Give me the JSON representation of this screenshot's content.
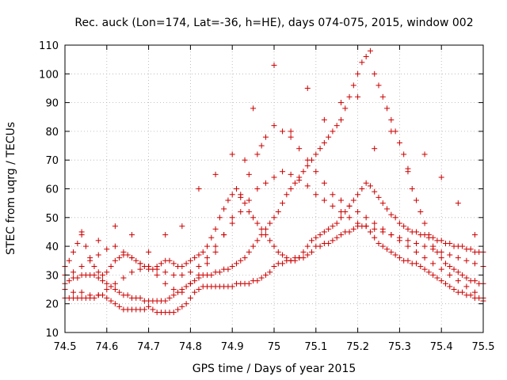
{
  "chart_data": {
    "type": "scatter",
    "title": "Rec. auck (Lon=174, Lat=-36, h=HE), days 074-075, 2015, window 002",
    "xlabel": "GPS time / Days of year 2015",
    "ylabel": "STEC from uqrg / TECUs",
    "xlim": [
      74.5,
      75.5
    ],
    "ylim": [
      10,
      110
    ],
    "xticks": [
      "74.5",
      "74.6",
      "74.7",
      "74.8",
      "74.9",
      "75",
      "75.1",
      "75.2",
      "75.3",
      "75.4",
      "75.5"
    ],
    "yticks": [
      "10",
      "20",
      "30",
      "40",
      "50",
      "60",
      "70",
      "80",
      "90",
      "100",
      "110"
    ],
    "grid": true,
    "marker": "+",
    "color": "#cc0000",
    "series": [
      {
        "x": [
          74.5,
          74.51,
          74.52,
          74.53,
          74.54,
          74.55,
          74.56,
          74.57,
          74.58,
          74.59,
          74.6,
          74.61,
          74.62,
          74.63,
          74.64,
          74.65,
          74.66,
          74.67,
          74.68,
          74.69,
          74.7,
          74.71,
          74.72,
          74.73,
          74.74,
          74.75,
          74.76,
          74.77,
          74.78,
          74.79,
          74.8,
          74.81,
          74.82,
          74.83,
          74.84,
          74.85,
          74.86,
          74.87,
          74.88,
          74.89,
          74.9,
          74.91,
          74.92,
          74.93,
          74.94,
          74.95,
          74.96,
          74.97,
          74.98,
          74.99,
          75.0,
          75.01,
          75.02,
          75.03,
          75.04,
          75.05,
          75.06,
          75.07,
          75.08,
          75.09,
          75.1,
          75.11,
          75.12,
          75.13,
          75.14,
          75.15,
          75.16,
          75.17,
          75.18,
          75.19,
          75.2,
          75.21,
          75.22,
          75.23,
          75.24,
          75.25,
          75.26,
          75.27,
          75.28,
          75.29,
          75.3,
          75.31,
          75.32,
          75.33,
          75.34,
          75.35,
          75.36,
          75.37,
          75.38,
          75.39,
          75.4,
          75.41,
          75.42,
          75.43,
          75.44,
          75.45,
          75.46,
          75.47,
          75.48,
          75.49,
          75.5
        ],
        "y": [
          22,
          22,
          22,
          22,
          22,
          22,
          22,
          22,
          23,
          23,
          22,
          21,
          20,
          19,
          18,
          18,
          18,
          18,
          18,
          18,
          19,
          18,
          17,
          17,
          17,
          17,
          17,
          18,
          19,
          20,
          22,
          24,
          25,
          26,
          26,
          26,
          26,
          26,
          26,
          26,
          26,
          27,
          27,
          27,
          27,
          28,
          28,
          29,
          30,
          31,
          33,
          34,
          34,
          35,
          35,
          36,
          36,
          36,
          37,
          38,
          40,
          40,
          41,
          41,
          42,
          43,
          44,
          45,
          45,
          46,
          47,
          47,
          47,
          45,
          43,
          41,
          40,
          39,
          38,
          37,
          36,
          35,
          35,
          34,
          34,
          33,
          32,
          31,
          30,
          29,
          28,
          27,
          26,
          25,
          24,
          24,
          23,
          23,
          22,
          22,
          21
        ]
      },
      {
        "x": [
          74.5,
          74.51,
          74.52,
          74.53,
          74.54,
          74.55,
          74.56,
          74.57,
          74.58,
          74.59,
          74.6,
          74.61,
          74.62,
          74.63,
          74.64,
          74.65,
          74.66,
          74.67,
          74.68,
          74.69,
          74.7,
          74.71,
          74.72,
          74.73,
          74.74,
          74.75,
          74.76,
          74.77,
          74.78,
          74.79,
          74.8,
          74.81,
          74.82,
          74.83,
          74.84,
          74.85,
          74.86,
          74.87,
          74.88,
          74.89,
          74.9,
          74.91,
          74.92,
          74.93,
          74.94,
          74.95,
          74.96,
          74.97,
          74.98,
          74.99,
          75.0,
          75.01,
          75.02,
          75.03,
          75.04,
          75.05,
          75.06,
          75.07,
          75.08,
          75.09,
          75.1,
          75.11,
          75.12,
          75.13,
          75.14,
          75.15,
          75.16,
          75.17,
          75.18,
          75.19,
          75.2,
          75.21,
          75.22,
          75.23,
          75.24,
          75.25,
          75.26,
          75.27,
          75.28,
          75.29,
          75.3,
          75.31,
          75.32,
          75.33,
          75.34,
          75.35,
          75.36,
          75.37,
          75.38,
          75.39,
          75.4,
          75.41,
          75.42,
          75.43,
          75.44,
          75.45,
          75.46,
          75.47,
          75.48,
          75.49,
          75.5
        ],
        "y": [
          27,
          28,
          29,
          29,
          30,
          30,
          30,
          30,
          29,
          28,
          27,
          26,
          25,
          24,
          23,
          23,
          22,
          22,
          22,
          21,
          21,
          21,
          21,
          21,
          21,
          22,
          23,
          24,
          25,
          26,
          27,
          28,
          29,
          30,
          30,
          30,
          31,
          31,
          32,
          32,
          33,
          34,
          35,
          36,
          38,
          40,
          42,
          44,
          46,
          48,
          50,
          52,
          55,
          58,
          60,
          62,
          64,
          66,
          68,
          70,
          72,
          74,
          76,
          78,
          80,
          82,
          84,
          88,
          92,
          96,
          100,
          104,
          106,
          108,
          100,
          96,
          92,
          88,
          84,
          80,
          76,
          72,
          66,
          60,
          56,
          52,
          48,
          44,
          40,
          38,
          36,
          34,
          33,
          32,
          31,
          30,
          29,
          28,
          28,
          27,
          27
        ]
      },
      {
        "x": [
          74.5,
          74.51,
          74.52,
          74.53,
          74.54,
          74.55,
          74.56,
          74.57,
          74.58,
          74.59,
          74.6,
          74.61,
          74.62,
          74.63,
          74.64,
          74.65,
          74.66,
          74.67,
          74.68,
          74.69,
          74.7,
          74.71,
          74.72,
          74.73,
          74.74,
          74.75,
          74.76,
          74.77,
          74.78,
          74.79,
          74.8,
          74.81,
          74.82,
          74.83,
          74.84,
          74.85,
          74.86,
          74.87,
          74.88,
          74.89,
          74.9,
          74.91,
          74.92,
          74.93,
          74.94,
          74.95,
          74.96,
          74.97,
          74.98,
          74.99,
          75.0,
          75.01,
          75.02,
          75.03,
          75.04,
          75.05,
          75.06,
          75.07,
          75.08,
          75.09,
          75.1,
          75.11,
          75.12,
          75.13,
          75.14,
          75.15,
          75.16,
          75.17,
          75.18,
          75.19,
          75.2,
          75.21,
          75.22,
          75.23,
          75.24,
          75.25,
          75.26,
          75.27,
          75.28,
          75.29,
          75.3,
          75.31,
          75.32,
          75.33,
          75.34,
          75.35,
          75.36,
          75.37,
          75.38,
          75.39,
          75.4,
          75.41,
          75.42,
          75.43,
          75.44,
          75.45,
          75.46,
          75.47,
          75.48,
          75.49,
          75.5
        ],
        "y": [
          33,
          35,
          38,
          41,
          44,
          40,
          36,
          33,
          31,
          30,
          31,
          33,
          35,
          36,
          37,
          37,
          36,
          35,
          34,
          33,
          32,
          32,
          33,
          34,
          35,
          35,
          34,
          33,
          33,
          34,
          35,
          36,
          37,
          38,
          40,
          43,
          46,
          50,
          53,
          56,
          58,
          60,
          58,
          55,
          52,
          50,
          48,
          46,
          44,
          42,
          40,
          38,
          37,
          36,
          35,
          35,
          36,
          38,
          40,
          42,
          43,
          44,
          45,
          46,
          47,
          48,
          50,
          52,
          54,
          56,
          58,
          60,
          62,
          61,
          59,
          57,
          55,
          53,
          51,
          50,
          48,
          47,
          46,
          45,
          45,
          44,
          44,
          43,
          43,
          42,
          42,
          41,
          41,
          40,
          40,
          40,
          39,
          39,
          38,
          38,
          38
        ]
      },
      {
        "x": [
          74.5,
          74.52,
          74.54,
          74.56,
          74.58,
          74.6,
          74.62,
          74.64,
          74.66,
          74.68,
          74.7,
          74.72,
          74.74,
          74.76,
          74.78,
          74.8,
          74.82,
          74.84,
          74.86,
          74.88,
          74.9,
          74.92,
          74.94,
          74.96,
          74.98,
          75.0,
          75.02,
          75.04,
          75.06,
          75.08,
          75.1,
          75.12,
          75.14,
          75.16,
          75.18,
          75.2,
          75.22,
          75.24,
          75.26,
          75.28,
          75.3,
          75.32,
          75.34,
          75.36,
          75.38,
          75.4,
          75.42,
          75.44,
          75.46,
          75.48,
          75.5
        ],
        "y": [
          30,
          31,
          33,
          35,
          37,
          39,
          40,
          38,
          36,
          34,
          33,
          32,
          31,
          30,
          30,
          31,
          33,
          36,
          40,
          44,
          48,
          52,
          56,
          60,
          62,
          64,
          66,
          65,
          63,
          61,
          58,
          56,
          54,
          52,
          50,
          48,
          47,
          46,
          45,
          44,
          43,
          42,
          41,
          40,
          39,
          38,
          37,
          36,
          35,
          34,
          33
        ]
      },
      {
        "x": [
          74.5,
          74.52,
          74.54,
          74.56,
          74.58,
          74.6,
          74.62,
          74.64,
          74.66,
          74.68,
          74.7,
          74.72,
          74.74,
          74.76,
          74.78,
          74.8,
          74.82,
          74.84,
          74.86,
          74.88,
          74.9,
          74.92,
          74.94,
          74.96,
          74.98,
          75.0,
          75.02,
          75.04,
          75.06,
          75.08,
          75.1,
          75.12,
          75.14,
          75.16,
          75.18,
          75.2,
          75.22,
          75.24,
          75.26,
          75.28,
          75.3,
          75.32,
          75.34,
          75.36,
          75.38,
          75.4,
          75.42,
          75.44,
          75.46,
          75.48,
          75.5
        ],
        "y": [
          25,
          24,
          24,
          23,
          23,
          25,
          27,
          29,
          31,
          32,
          33,
          30,
          27,
          25,
          24,
          27,
          30,
          34,
          38,
          44,
          50,
          57,
          65,
          72,
          78,
          82,
          80,
          78,
          74,
          70,
          66,
          62,
          58,
          56,
          54,
          52,
          50,
          48,
          46,
          44,
          42,
          40,
          38,
          36,
          34,
          32,
          30,
          28,
          26,
          24,
          22
        ]
      },
      {
        "x": [
          74.54,
          74.58,
          74.62,
          74.66,
          74.7,
          74.74,
          74.78,
          74.82,
          74.86,
          74.9,
          74.93,
          74.95,
          74.97,
          75.0,
          75.04,
          75.08,
          75.12,
          75.16,
          75.2,
          75.24,
          75.28,
          75.32,
          75.36,
          75.4,
          75.44,
          75.48
        ],
        "y": [
          45,
          42,
          47,
          44,
          38,
          44,
          47,
          60,
          65,
          72,
          70,
          88,
          75,
          103,
          80,
          95,
          84,
          90,
          92,
          74,
          80,
          67,
          72,
          64,
          55,
          44
        ]
      }
    ]
  }
}
